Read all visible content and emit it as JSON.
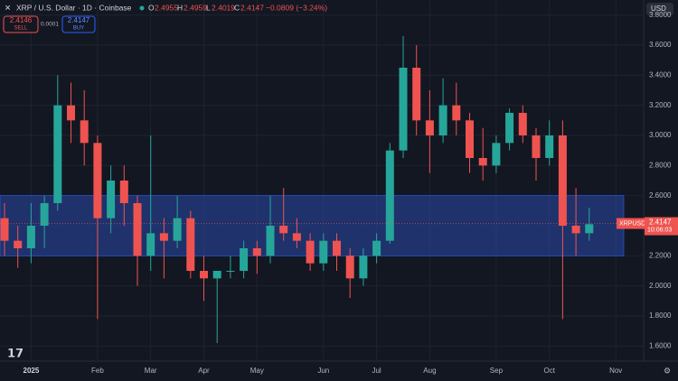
{
  "chart_data": {
    "type": "candlestick",
    "header": {
      "symbol": "XRP / U.S. Dollar · 1D · Coinbase",
      "o_label": "O",
      "o": "2.4955",
      "h_label": "H",
      "h": "2.4959",
      "l_label": "L",
      "l": "2.4019",
      "c_label": "C",
      "c": "2.4147",
      "change": "−0.0809 (−3.24%)"
    },
    "sell": {
      "price": "2.4146",
      "label": "SELL"
    },
    "spread": "0.0001",
    "buy": {
      "price": "2.4147",
      "label": "BUY"
    },
    "currency": "USD",
    "price_tag": {
      "symbol": "XRPUSD",
      "price": 2.4147,
      "timer": "10:06:03"
    },
    "band": [
      2.2,
      2.6
    ],
    "categories": [
      null,
      null,
      "2025",
      null,
      null,
      null,
      null,
      "Feb",
      null,
      null,
      null,
      "Mar",
      null,
      null,
      null,
      "Apr",
      null,
      null,
      null,
      "May",
      null,
      null,
      null,
      null,
      "Jun",
      null,
      null,
      null,
      "Jul",
      null,
      null,
      null,
      "Aug",
      null,
      null,
      null,
      null,
      "Sep",
      null,
      null,
      null,
      "Oct",
      null,
      null,
      null,
      null,
      "Nov"
    ],
    "open": [
      2.45,
      2.3,
      2.25,
      2.4,
      2.55,
      3.2,
      3.1,
      2.95,
      2.45,
      2.7,
      2.55,
      2.2,
      2.35,
      2.3,
      2.45,
      2.1,
      2.05,
      2.1,
      2.1,
      2.25,
      2.2,
      2.4,
      2.35,
      2.3,
      2.15,
      2.3,
      2.2,
      2.05,
      2.2,
      2.3,
      2.9,
      3.45,
      3.1,
      3.0,
      3.2,
      3.1,
      2.85,
      2.8,
      2.95,
      3.15,
      3.0,
      2.85,
      3.0,
      2.4,
      2.35,
      null,
      null
    ],
    "high": [
      2.55,
      2.4,
      2.55,
      2.6,
      3.4,
      3.35,
      3.3,
      3.0,
      2.8,
      2.8,
      2.6,
      3.0,
      2.45,
      2.6,
      2.5,
      2.2,
      2.1,
      2.2,
      2.3,
      2.3,
      2.6,
      2.65,
      2.45,
      2.35,
      2.35,
      2.35,
      2.25,
      2.25,
      2.35,
      2.95,
      3.66,
      3.6,
      3.3,
      3.38,
      3.35,
      3.15,
      3.05,
      3.0,
      3.18,
      3.2,
      3.05,
      3.1,
      3.1,
      2.65,
      2.52,
      null,
      null
    ],
    "low": [
      2.2,
      2.12,
      2.15,
      2.25,
      2.5,
      2.95,
      2.8,
      1.78,
      2.35,
      2.4,
      2.0,
      2.1,
      2.05,
      2.25,
      2.05,
      1.9,
      1.62,
      2.05,
      2.05,
      2.08,
      2.15,
      2.3,
      2.25,
      2.1,
      2.1,
      2.1,
      1.92,
      2.0,
      2.15,
      2.28,
      2.85,
      3.0,
      2.75,
      2.95,
      3.0,
      2.75,
      2.7,
      2.75,
      2.9,
      2.95,
      2.7,
      2.8,
      1.78,
      2.2,
      2.3,
      null,
      null
    ],
    "close": [
      2.3,
      2.25,
      2.4,
      2.55,
      3.2,
      3.1,
      2.95,
      2.45,
      2.7,
      2.55,
      2.2,
      2.35,
      2.3,
      2.45,
      2.1,
      2.05,
      2.1,
      2.1,
      2.25,
      2.2,
      2.4,
      2.35,
      2.3,
      2.15,
      2.3,
      2.2,
      2.05,
      2.2,
      2.3,
      2.9,
      3.45,
      3.1,
      3.0,
      3.2,
      3.1,
      2.85,
      2.8,
      2.95,
      3.15,
      3.0,
      2.85,
      3.0,
      2.4,
      2.35,
      2.41,
      null,
      null
    ],
    "up_color": "#26a69a",
    "down_color": "#ef5350",
    "ylim": [
      1.5,
      3.9
    ],
    "yticks": [
      {
        "value": 1.6,
        "label": "1.6000"
      },
      {
        "value": 1.8,
        "label": "1.8000"
      },
      {
        "value": 2.0,
        "label": "2.0000"
      },
      {
        "value": 2.2,
        "label": "2.2000"
      },
      {
        "value": 2.4,
        "label": "2.4000"
      },
      {
        "value": 2.6,
        "label": "2.6000"
      },
      {
        "value": 2.8,
        "label": "2.8000"
      },
      {
        "value": 3.0,
        "label": "3.0000"
      },
      {
        "value": 3.2,
        "label": "3.2000"
      },
      {
        "value": 3.4,
        "label": "3.4000"
      },
      {
        "value": 3.6,
        "label": "3.6000"
      },
      {
        "value": 3.8,
        "label": "3.8000"
      }
    ],
    "grid": true
  }
}
